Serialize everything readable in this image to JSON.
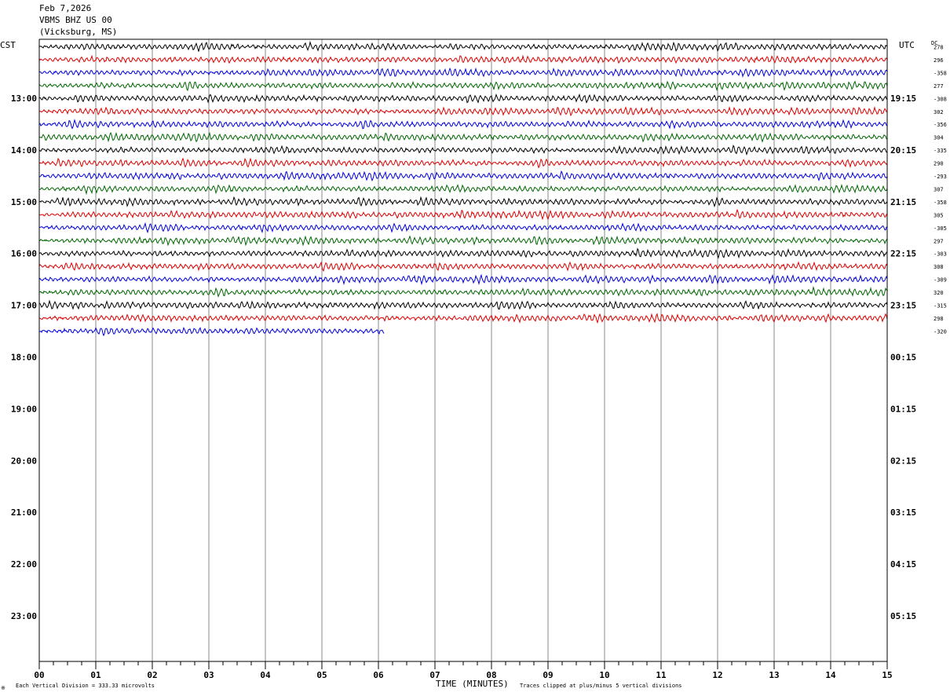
{
  "header": {
    "date": "Feb 7,2026",
    "station": "VBMS BHZ US 00",
    "location": "(Vicksburg, MS)"
  },
  "labels": {
    "left_tz": "CST",
    "right_tz": "UTC",
    "dc": "DC",
    "xlabel": "TIME (MINUTES)",
    "scale_note": "Each Vertical Division =  333.33 microvolts",
    "clip_note": "Traces clipped at plus/minus 5 vertical divisions",
    "corner_mark": "※"
  },
  "chart_data": {
    "type": "line",
    "title": "Feb 7,2026",
    "xlabel": "TIME (MINUTES)",
    "x_range": [
      0,
      15
    ],
    "x_ticks": [
      "00",
      "01",
      "02",
      "03",
      "04",
      "05",
      "06",
      "07",
      "08",
      "09",
      "10",
      "11",
      "12",
      "13",
      "14",
      "15"
    ],
    "left_hour_labels": [
      "13:00",
      "14:00",
      "15:00",
      "16:00",
      "17:00",
      "18:00",
      "19:00",
      "20:00",
      "21:00",
      "22:00",
      "23:00"
    ],
    "right_hour_labels": [
      "19:15",
      "20:15",
      "21:15",
      "22:15",
      "23:15",
      "00:15",
      "01:15",
      "02:15",
      "03:15",
      "04:15",
      "05:15"
    ],
    "trace_colors": [
      "#000000",
      "#dd0000",
      "#0000dd",
      "#006600"
    ],
    "dc_offsets": [
      "278",
      "296",
      "-358",
      "277",
      "-308",
      "302",
      "-356",
      "304",
      "-335",
      "290",
      "-293",
      "307",
      "-358",
      "305",
      "-305",
      "297",
      "-303",
      "308",
      "-309",
      "320",
      "-315",
      "298",
      "-320"
    ],
    "trace_count": 23,
    "last_trace_end_minute": 6.1,
    "grid": "vertical lines every minute"
  }
}
